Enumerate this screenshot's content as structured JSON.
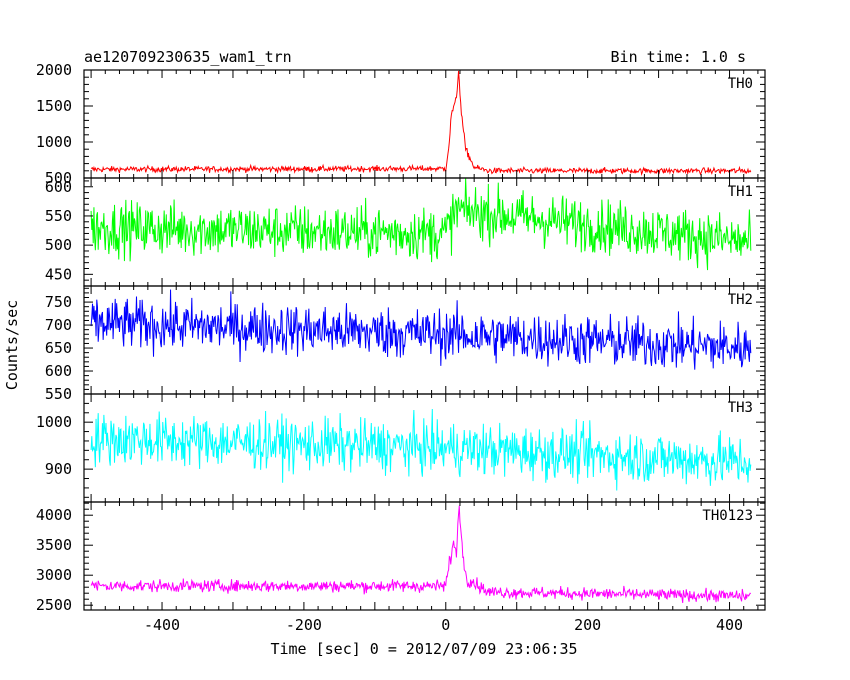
{
  "chart_data": {
    "type": "line",
    "title": "ae120709230635_wam1_trn",
    "subtitle": "Bin time: 1.0 s",
    "xlabel": "Time [sec] 0 = 2012/07/09 23:06:35",
    "ylabel": "Counts/sec",
    "xlim": [
      -510,
      450
    ],
    "x_ticks": [
      -400,
      -200,
      0,
      200,
      400
    ],
    "data_range": [
      -500,
      430
    ],
    "bin_time_s": 1.0,
    "series": [
      {
        "name": "TH0",
        "color": "#ff0000",
        "ylim": [
          500,
          2000
        ],
        "y_ticks": [
          500,
          1000,
          1500,
          2000
        ],
        "baseline": [
          [
            -500,
            620
          ],
          [
            0,
            630
          ],
          [
            60,
            600
          ],
          [
            430,
            600
          ]
        ],
        "noise_amplitude": 40,
        "features": [
          [
            -6,
            1000,
            1400,
            1600,
            1600,
            1800,
            2000,
            1600,
            1000,
            750,
            650
          ]
        ],
        "feature_start": [
          0
        ],
        "points": [
          [
            -500,
            620
          ],
          [
            0,
            630
          ],
          [
            5,
            1000
          ],
          [
            8,
            1400
          ],
          [
            12,
            1500
          ],
          [
            15,
            1600
          ],
          [
            18,
            2000
          ],
          [
            22,
            1400
          ],
          [
            28,
            900
          ],
          [
            40,
            650
          ],
          [
            60,
            600
          ],
          [
            430,
            600
          ]
        ]
      },
      {
        "name": "TH1",
        "color": "#00ff00",
        "ylim": [
          430,
          615
        ],
        "y_ticks": [
          450,
          500,
          550,
          600
        ],
        "baseline": [
          [
            -500,
            530
          ],
          [
            0,
            520
          ],
          [
            430,
            505
          ]
        ],
        "noise_amplitude": 45,
        "points": [
          [
            -500,
            530
          ],
          [
            0,
            520
          ],
          [
            15,
            560
          ],
          [
            430,
            505
          ]
        ]
      },
      {
        "name": "TH2",
        "color": "#0000ff",
        "ylim": [
          550,
          785
        ],
        "y_ticks": [
          550,
          600,
          650,
          700,
          750
        ],
        "baseline": [
          [
            -500,
            705
          ],
          [
            0,
            680
          ],
          [
            430,
            650
          ]
        ],
        "noise_amplitude": 55,
        "points": [
          [
            -500,
            705
          ],
          [
            0,
            680
          ],
          [
            430,
            650
          ]
        ]
      },
      {
        "name": "TH3",
        "color": "#00ffff",
        "ylim": [
          830,
          1060
        ],
        "y_ticks": [
          900,
          1000
        ],
        "baseline": [
          [
            -500,
            965
          ],
          [
            0,
            945
          ],
          [
            430,
            915
          ]
        ],
        "noise_amplitude": 55,
        "points": [
          [
            -500,
            965
          ],
          [
            0,
            945
          ],
          [
            430,
            915
          ]
        ]
      },
      {
        "name": "TH0123",
        "color": "#ff00ff",
        "ylim": [
          2420,
          4220
        ],
        "y_ticks": [
          2500,
          3000,
          3500,
          4000
        ],
        "baseline": [
          [
            -500,
            2820
          ],
          [
            0,
            2820
          ],
          [
            60,
            2720
          ],
          [
            430,
            2650
          ]
        ],
        "noise_amplitude": 100,
        "points": [
          [
            -500,
            2820
          ],
          [
            0,
            2820
          ],
          [
            5,
            3200
          ],
          [
            10,
            3500
          ],
          [
            15,
            3400
          ],
          [
            19,
            4200
          ],
          [
            24,
            3300
          ],
          [
            30,
            2950
          ],
          [
            60,
            2720
          ],
          [
            430,
            2650
          ]
        ]
      }
    ],
    "grid": false,
    "legend": "none"
  }
}
